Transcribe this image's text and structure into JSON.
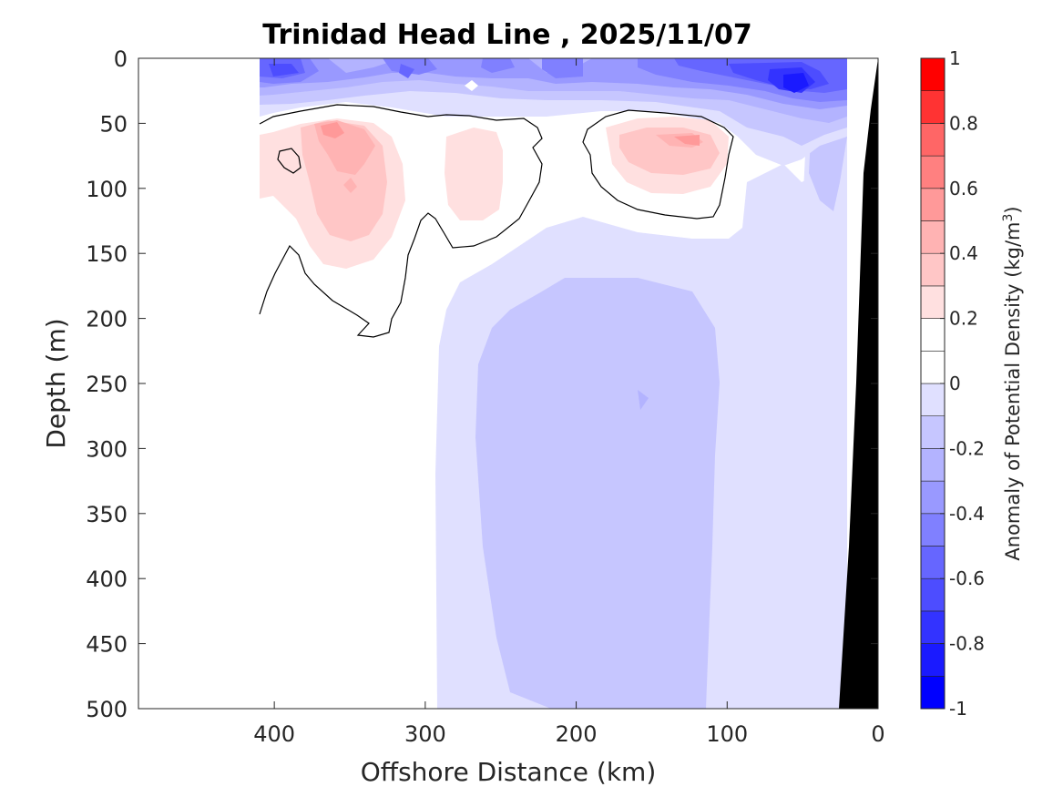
{
  "chart_data": {
    "type": "contour",
    "title": "Trinidad Head Line , 2025/11/07",
    "xlabel": "Offshore Distance (km)",
    "ylabel": "Depth (m)",
    "xlim": [
      490,
      0
    ],
    "ylim": [
      0,
      500
    ],
    "x_reversed": true,
    "y_reversed": true,
    "x_ticks": [
      400,
      300,
      200,
      100,
      0
    ],
    "x_tick_labels": [
      "400",
      "300",
      "200",
      "100",
      "0"
    ],
    "y_ticks": [
      0,
      50,
      100,
      150,
      200,
      250,
      300,
      350,
      400,
      450,
      500
    ],
    "y_tick_labels": [
      "0",
      "50",
      "100",
      "150",
      "200",
      "250",
      "300",
      "350",
      "400",
      "450",
      "500"
    ],
    "colorbar": {
      "label": "Anomaly of Potential Density (kg/m",
      "label_sup": "3",
      "label_close": ")",
      "range": [
        -1,
        1
      ],
      "levels": [
        -1,
        -0.9,
        -0.8,
        -0.7,
        -0.6,
        -0.5,
        -0.4,
        -0.3,
        -0.2,
        -0.1,
        0,
        0.1,
        0.2,
        0.3,
        0.4,
        0.5,
        0.6,
        0.7,
        0.8,
        0.9,
        1
      ],
      "colors": [
        "#0000ff",
        "#1a1aff",
        "#3333ff",
        "#4d4dff",
        "#6666ff",
        "#8080ff",
        "#9999ff",
        "#b3b3ff",
        "#c6c6ff",
        "#e0e0ff",
        "#ffffff",
        "#ffffff",
        "#ffe0e0",
        "#ffc6c6",
        "#ffb3b3",
        "#ff9999",
        "#ff8080",
        "#ff6666",
        "#ff3333",
        "#ff0000"
      ],
      "tick_values": [
        1,
        0.8,
        0.6,
        0.4,
        0.2,
        0,
        -0.2,
        -0.4,
        -0.6,
        -0.8,
        -1
      ],
      "tick_labels": [
        "1",
        "0.8",
        "0.6",
        "0.4",
        "0.2",
        "0",
        "-0.2",
        "-0.4",
        "-0.6",
        "-0.8",
        "-1"
      ]
    },
    "data_extent_km": [
      410,
      0
    ],
    "features": [
      {
        "name": "surface negative anomaly layer",
        "depth_range_m": [
          0,
          45
        ],
        "anomaly_range": [
          -0.9,
          -0.2
        ]
      },
      {
        "name": "positive anomaly core west",
        "x_km": 350,
        "depth_m": 70,
        "peak_anomaly": 0.5
      },
      {
        "name": "positive anomaly core central",
        "x_km": 270,
        "depth_m": 70,
        "peak_anomaly": 0.2
      },
      {
        "name": "positive anomaly core east",
        "x_km": 140,
        "depth_m": 65,
        "peak_anomaly": 0.4
      },
      {
        "name": "deep negative anomaly body",
        "x_range_km": [
          270,
          100
        ],
        "depth_range_m": [
          150,
          500
        ],
        "peak_anomaly": -0.3
      }
    ],
    "bathymetry_color": "#000000"
  }
}
